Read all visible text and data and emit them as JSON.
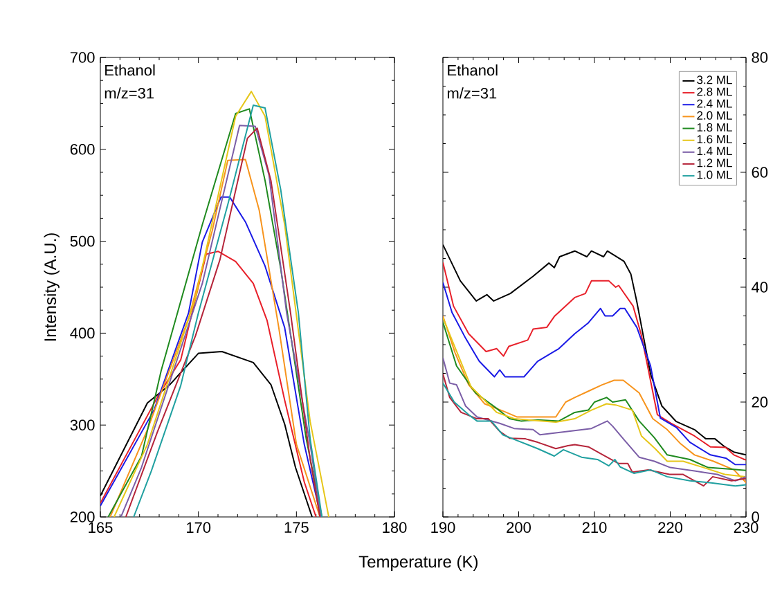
{
  "chart_data": [
    {
      "type": "line",
      "ylabel": "Intensity (A.U.)",
      "xlabel": "Temperature (K)",
      "annotations": [
        "Ethanol",
        "m/z=31"
      ],
      "xlim": [
        165,
        180
      ],
      "xticks": [
        165,
        170,
        175,
        180
      ],
      "ylim": [
        200,
        700
      ],
      "yticks": [
        200,
        300,
        400,
        500,
        600,
        700
      ],
      "line_style": "solid",
      "series": [
        {
          "color": "#000000",
          "x": [
            165,
            167.4,
            168.5,
            170,
            171.2,
            172.8,
            173.7,
            174.4,
            174.95,
            175.8
          ],
          "values": [
            223,
            324,
            343,
            378,
            380,
            368,
            344,
            301,
            254,
            200
          ]
        },
        {
          "color": "#e8202a",
          "x": [
            165,
            167.9,
            169.1,
            170.4,
            171,
            171.9,
            172.8,
            173.5,
            174.4,
            175.4,
            176
          ],
          "values": [
            215,
            330,
            371,
            486,
            489,
            478,
            454,
            414,
            327,
            238,
            200
          ]
        },
        {
          "color": "#1a1ae6",
          "x": [
            165,
            167.75,
            169.5,
            170.2,
            171.15,
            171.6,
            172.4,
            173.4,
            174.4,
            175.4,
            176.25
          ],
          "values": [
            212,
            317,
            422,
            499,
            548,
            548,
            521,
            473,
            406,
            279,
            200
          ]
        },
        {
          "color": "#f7941d",
          "x": [
            165.5,
            167.4,
            169.5,
            170.7,
            171.5,
            172.4,
            173.1,
            174.1,
            175,
            176.2
          ],
          "values": [
            200,
            295,
            416,
            511,
            588,
            589,
            534,
            406,
            279,
            200
          ]
        },
        {
          "color": "#1f8a1f",
          "x": [
            165.4,
            167.1,
            168.1,
            170.2,
            171.9,
            172.6,
            173.4,
            174.2,
            175.5,
            176.3
          ],
          "values": [
            200,
            266,
            359,
            518,
            639,
            644,
            566,
            470,
            285,
            200
          ]
        },
        {
          "color": "#e6c619",
          "x": [
            165.7,
            167.4,
            169.85,
            171.9,
            172.7,
            173.4,
            174.4,
            175.7,
            176.65
          ],
          "values": [
            200,
            279,
            438,
            636,
            663,
            636,
            518,
            304,
            200
          ]
        },
        {
          "color": "#7b5ea7",
          "x": [
            166.05,
            167.1,
            170.2,
            172.1,
            172.9,
            173.6,
            174.5,
            175.7,
            176.25
          ],
          "values": [
            200,
            254,
            454,
            626,
            625,
            572,
            422,
            279,
            200
          ]
        },
        {
          "color": "#b5253a",
          "x": [
            166.3,
            167.9,
            169.85,
            171.1,
            172.5,
            173,
            173.7,
            174.7,
            175.7,
            176.2
          ],
          "values": [
            200,
            292,
            397,
            480,
            612,
            623,
            566,
            422,
            263,
            200
          ]
        },
        {
          "color": "#20a0a0",
          "x": [
            166.7,
            167.6,
            169.1,
            170,
            171.5,
            172.8,
            173.4,
            174.2,
            175.1,
            175.7,
            176.3
          ],
          "values": [
            200,
            250,
            343,
            422,
            540,
            648,
            645,
            556,
            422,
            285,
            200
          ]
        }
      ]
    },
    {
      "type": "line",
      "annotations": [
        "Ethanol",
        "m/z=31"
      ],
      "xlim": [
        190,
        230
      ],
      "xticks": [
        190,
        200,
        210,
        220,
        230
      ],
      "y2lim": [
        0,
        80
      ],
      "y2ticks": [
        0,
        20,
        40,
        60,
        80
      ],
      "legend": "top right",
      "line_style": "solid",
      "series": [
        {
          "name": "3.2 ML",
          "color": "#000000",
          "axis": "y2",
          "x": [
            190,
            192.3,
            194.4,
            195.8,
            196.7,
            198.9,
            201.9,
            204,
            204.7,
            205.4,
            207.4,
            209,
            209.6,
            211.2,
            211.7,
            213.9,
            214.8,
            215.6,
            217.4,
            218.9,
            220.8,
            223.2,
            224.7,
            225.9,
            227.2,
            228.4,
            230
          ],
          "values": [
            47.4,
            41.1,
            37.6,
            38.7,
            37.6,
            38.9,
            41.9,
            44.2,
            43.4,
            45.3,
            46.3,
            45.3,
            46.3,
            45.3,
            46.3,
            44.5,
            42.3,
            37.4,
            24.9,
            19.3,
            16.6,
            15.2,
            13.6,
            13.6,
            12.2,
            11.3,
            10.8
          ]
        },
        {
          "name": "2.8 ML",
          "color": "#e8202a",
          "axis": "y2",
          "x": [
            190,
            191.4,
            193.4,
            195.7,
            197.1,
            198,
            198.7,
            201.2,
            201.9,
            203.7,
            204.7,
            207.4,
            208.8,
            209.6,
            211.9,
            212.8,
            213.2,
            215.1,
            216.2,
            218.3,
            220.1,
            223.2,
            225.3,
            227.3,
            228.4,
            230
          ],
          "values": [
            44.3,
            36.7,
            31.9,
            28.8,
            29.3,
            28,
            29.7,
            30.8,
            32.7,
            33,
            34.9,
            38.2,
            38.9,
            41.1,
            41.1,
            40,
            40.3,
            36.7,
            31.6,
            17.8,
            16.3,
            14.1,
            12.2,
            12.1,
            10.8,
            9.9
          ]
        },
        {
          "name": "2.4 ML",
          "color": "#1a1ae6",
          "axis": "y2",
          "x": [
            190,
            191.2,
            193,
            194.8,
            196.8,
            197.5,
            198.2,
            200.7,
            202.5,
            205.3,
            207.4,
            209.2,
            210.8,
            211.4,
            212.4,
            213.4,
            214,
            215.6,
            217.4,
            218.7,
            220.8,
            222.6,
            225.3,
            227.4,
            228.6,
            230
          ],
          "values": [
            40.8,
            35.6,
            31.1,
            27.1,
            24.4,
            25.6,
            24.4,
            24.4,
            27.1,
            29.3,
            31.9,
            33.8,
            36.3,
            35,
            35,
            36.3,
            36.3,
            33,
            26.3,
            17.2,
            15.6,
            13,
            10.8,
            10.2,
            9.1,
            9.1
          ]
        },
        {
          "name": "2.0 ML",
          "color": "#f7941d",
          "axis": "y2",
          "x": [
            190,
            191.6,
            193.4,
            195.5,
            198.2,
            199.8,
            204.9,
            206.2,
            207.4,
            209.2,
            211,
            212.6,
            213.8,
            215.9,
            217.7,
            219.6,
            221.4,
            223.2,
            225.7,
            228.4,
            230
          ],
          "values": [
            35,
            28.6,
            23,
            19.7,
            18.3,
            17.4,
            17.4,
            20,
            20.8,
            21.9,
            23,
            23.8,
            23.8,
            21.6,
            17.1,
            15.2,
            12.7,
            10.8,
            9.7,
            8.2,
            6
          ]
        },
        {
          "name": "1.8 ML",
          "color": "#1f8a1f",
          "axis": "y2",
          "x": [
            190,
            191.8,
            194.3,
            197.1,
            198.8,
            200.3,
            202.5,
            205.3,
            207.4,
            209.2,
            210,
            211.6,
            212.4,
            214.1,
            215.9,
            217.9,
            219.6,
            222.6,
            225,
            228.1,
            230
          ],
          "values": [
            33.9,
            26.3,
            21.6,
            18.9,
            17.1,
            16.7,
            16.9,
            16.7,
            18.2,
            18.6,
            20,
            20.8,
            20,
            20.4,
            16.7,
            13.8,
            10.8,
            10,
            8.6,
            8.3,
            8.1
          ]
        },
        {
          "name": "1.6 ML",
          "color": "#e6c619",
          "axis": "y2",
          "x": [
            190,
            193.7,
            197.1,
            199.4,
            204.9,
            207.4,
            209.6,
            211.6,
            212.8,
            215,
            216.2,
            218,
            219.6,
            221.7,
            224.4,
            227.2,
            230
          ],
          "values": [
            34.7,
            22.7,
            18.2,
            17.1,
            16.5,
            17.1,
            18.6,
            19.7,
            19.5,
            18.6,
            14.1,
            11.9,
            9.7,
            9.7,
            8.6,
            7.4,
            7
          ]
        },
        {
          "name": "1.4 ML",
          "color": "#7b5ea7",
          "axis": "y2",
          "x": [
            190,
            190.9,
            191.8,
            193,
            194.5,
            197.5,
            199.4,
            201.9,
            202.8,
            206.6,
            209.6,
            211.7,
            212.4,
            214,
            215.9,
            217.9,
            220,
            223.2,
            226.2,
            228.6,
            230
          ],
          "values": [
            27.7,
            23.3,
            23,
            19.3,
            17.4,
            16.3,
            15.4,
            15.2,
            14.3,
            14.9,
            15.4,
            16.7,
            15.8,
            13.3,
            10.4,
            9.7,
            8.6,
            8,
            7.4,
            6.3,
            7
          ]
        },
        {
          "name": "1.2 ML",
          "color": "#b5253a",
          "axis": "y2",
          "x": [
            190,
            190.9,
            192.4,
            194.5,
            196,
            197.5,
            198.8,
            200.9,
            202.5,
            204.9,
            206.5,
            207.4,
            209.2,
            211,
            213.2,
            214.4,
            215,
            217.1,
            219.9,
            221.7,
            224.4,
            225.6,
            228.1,
            230
          ],
          "values": [
            24.9,
            20.8,
            18.2,
            17.1,
            17.1,
            14.9,
            13.7,
            13.6,
            13,
            11.9,
            12.4,
            12.6,
            12.2,
            10.9,
            9.3,
            9.3,
            7.8,
            8.2,
            7.4,
            7.4,
            5.4,
            7,
            6.3,
            6.7
          ]
        },
        {
          "name": "1.0 ML",
          "color": "#20a0a0",
          "axis": "y2",
          "x": [
            190,
            191.5,
            193.4,
            194.5,
            196.4,
            197.9,
            199.8,
            202.5,
            204.7,
            205.9,
            208.3,
            210.4,
            211.9,
            212.7,
            213.4,
            215.2,
            217.4,
            219.6,
            222.6,
            225.6,
            228.6,
            230
          ],
          "values": [
            23.3,
            20,
            17.8,
            16.7,
            16.7,
            14.3,
            13.3,
            11.9,
            10.6,
            11.7,
            10.4,
            10,
            8.9,
            10,
            8.7,
            7.6,
            8.2,
            7,
            6.3,
            5.9,
            5.4,
            5.6
          ]
        }
      ]
    }
  ]
}
